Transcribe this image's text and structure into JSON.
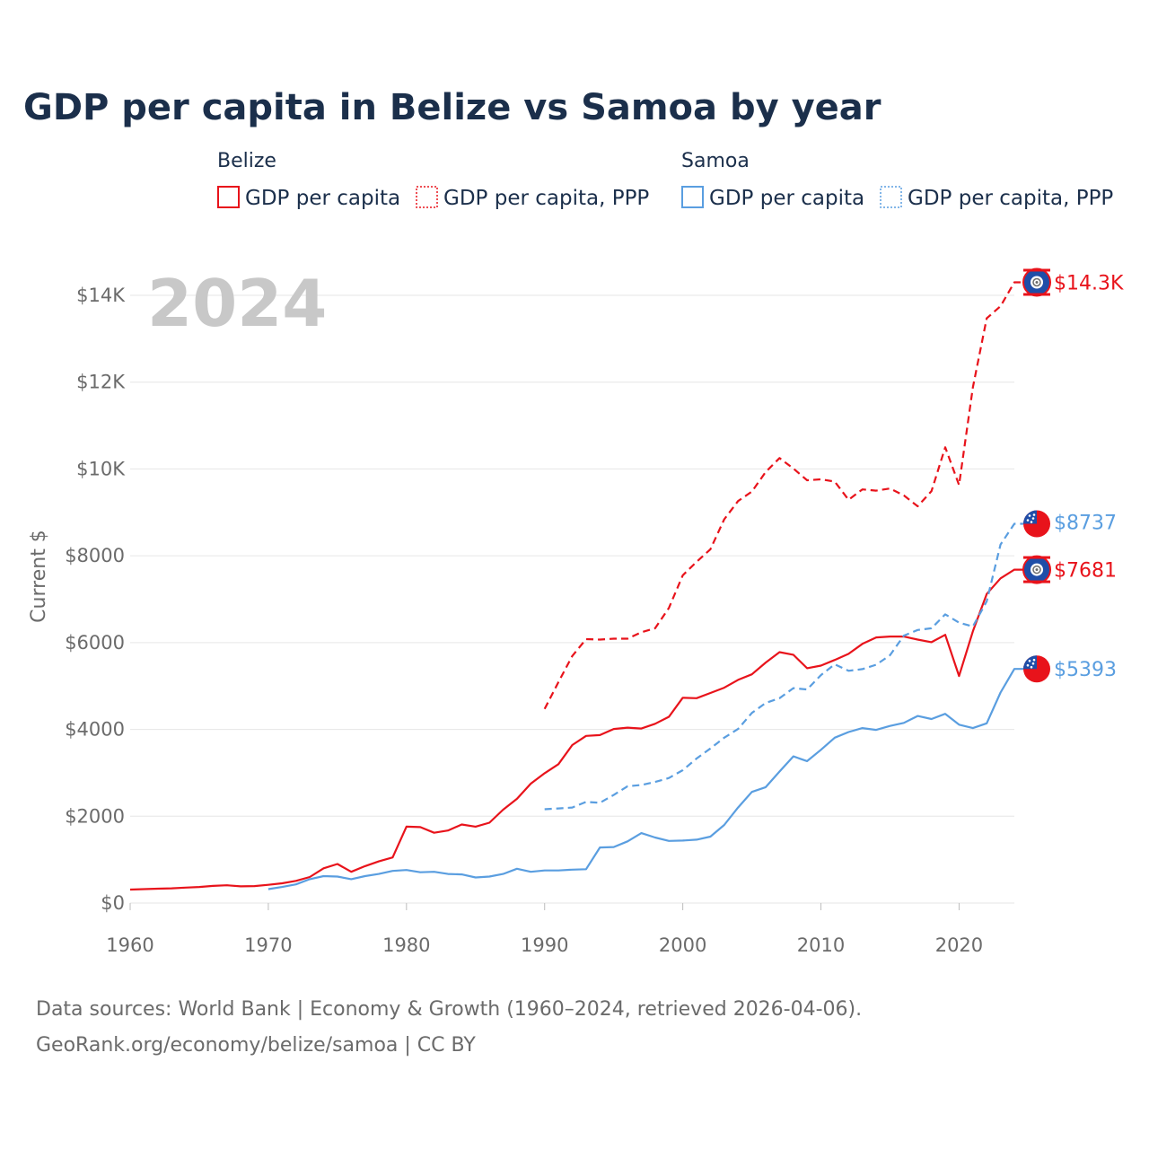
{
  "title": "GDP per capita in Belize vs Samoa by year",
  "year_label": "2024",
  "legend": {
    "groups": [
      {
        "name": "Belize",
        "items": [
          "GDP per capita",
          "GDP per capita, PPP"
        ],
        "color": "#e8131b"
      },
      {
        "name": "Samoa",
        "items": [
          "GDP per capita",
          "GDP per capita, PPP"
        ],
        "color": "#5a9ee0"
      }
    ]
  },
  "footer": {
    "line1": "Data sources: World Bank | Economy & Growth (1960–2024, retrieved 2026-04-06).",
    "line2": "GeoRank.org/economy/belize/samoa | CC BY"
  },
  "colors": {
    "belize": "#e8131b",
    "samoa": "#5a9ee0",
    "flag_blue": "#1f4ea8",
    "flag_red": "#e8131b"
  },
  "chart_data": {
    "type": "line",
    "ylabel": "Current $",
    "xlim": [
      1960,
      2025
    ],
    "ylim": [
      0,
      15000
    ],
    "xticks": [
      1960,
      1970,
      1980,
      1990,
      2000,
      2010,
      2020
    ],
    "xtick_labels": [
      "1960",
      "1970",
      "1980",
      "1990",
      "2000",
      "2010",
      "2020"
    ],
    "yticks": [
      0,
      2000,
      4000,
      6000,
      8000,
      10000,
      12000,
      14000
    ],
    "ytick_labels": [
      "$0",
      "$2000",
      "$4000",
      "$6000",
      "$8000",
      "$10K",
      "$12K",
      "$14K"
    ],
    "series": [
      {
        "name": "Belize GDP per capita",
        "key": "belize_gdp",
        "country": "Belize",
        "color": "#e8131b",
        "dashed": false,
        "end_label": "$7681",
        "x": [
          1960,
          1961,
          1962,
          1963,
          1964,
          1965,
          1966,
          1967,
          1968,
          1969,
          1970,
          1971,
          1972,
          1973,
          1974,
          1975,
          1976,
          1977,
          1978,
          1979,
          1980,
          1981,
          1982,
          1983,
          1984,
          1985,
          1986,
          1987,
          1988,
          1989,
          1990,
          1991,
          1992,
          1993,
          1994,
          1995,
          1996,
          1997,
          1998,
          1999,
          2000,
          2001,
          2002,
          2003,
          2004,
          2005,
          2006,
          2007,
          2008,
          2009,
          2010,
          2011,
          2012,
          2013,
          2014,
          2015,
          2016,
          2017,
          2018,
          2019,
          2020,
          2021,
          2022,
          2023,
          2024
        ],
        "values": [
          310,
          320,
          330,
          340,
          355,
          370,
          395,
          410,
          385,
          390,
          420,
          455,
          510,
          600,
          800,
          900,
          720,
          850,
          960,
          1050,
          1760,
          1750,
          1620,
          1670,
          1810,
          1760,
          1850,
          2150,
          2400,
          2750,
          2990,
          3200,
          3640,
          3850,
          3870,
          4010,
          4040,
          4020,
          4130,
          4290,
          4730,
          4720,
          4840,
          4960,
          5140,
          5270,
          5540,
          5780,
          5720,
          5410,
          5470,
          5600,
          5740,
          5970,
          6120,
          6140,
          6140,
          6070,
          6010,
          6180,
          5230,
          6260,
          7120,
          7480,
          7681
        ]
      },
      {
        "name": "Belize GDP per capita, PPP",
        "key": "belize_ppp",
        "country": "Belize",
        "color": "#e8131b",
        "dashed": true,
        "end_label": "$14.3K",
        "x": [
          1990,
          1991,
          1992,
          1993,
          1994,
          1995,
          1996,
          1997,
          1998,
          1999,
          2000,
          2001,
          2002,
          2003,
          2004,
          2005,
          2006,
          2007,
          2008,
          2009,
          2010,
          2011,
          2012,
          2013,
          2014,
          2015,
          2016,
          2017,
          2018,
          2019,
          2020,
          2021,
          2022,
          2023,
          2024
        ],
        "values": [
          4470,
          5090,
          5690,
          6080,
          6070,
          6090,
          6090,
          6240,
          6330,
          6800,
          7550,
          7860,
          8150,
          8840,
          9260,
          9480,
          9930,
          10250,
          10010,
          9740,
          9760,
          9710,
          9290,
          9530,
          9500,
          9550,
          9390,
          9140,
          9490,
          10500,
          9630,
          11880,
          13470,
          13750,
          14300
        ]
      },
      {
        "name": "Samoa GDP per capita",
        "key": "samoa_gdp",
        "country": "Samoa",
        "color": "#5a9ee0",
        "dashed": false,
        "end_label": "$5393",
        "x": [
          1970,
          1971,
          1972,
          1973,
          1974,
          1975,
          1976,
          1977,
          1978,
          1979,
          1980,
          1981,
          1982,
          1983,
          1984,
          1985,
          1986,
          1987,
          1988,
          1989,
          1990,
          1991,
          1992,
          1993,
          1994,
          1995,
          1996,
          1997,
          1998,
          1999,
          2000,
          2001,
          2002,
          2003,
          2004,
          2005,
          2006,
          2007,
          2008,
          2009,
          2010,
          2011,
          2012,
          2013,
          2014,
          2015,
          2016,
          2017,
          2018,
          2019,
          2020,
          2021,
          2022,
          2023,
          2024
        ],
        "values": [
          320,
          370,
          430,
          550,
          620,
          610,
          550,
          620,
          670,
          740,
          760,
          710,
          720,
          670,
          660,
          590,
          610,
          670,
          790,
          720,
          750,
          750,
          770,
          780,
          1280,
          1290,
          1420,
          1610,
          1510,
          1430,
          1440,
          1460,
          1530,
          1800,
          2200,
          2560,
          2670,
          3030,
          3380,
          3270,
          3530,
          3810,
          3940,
          4030,
          3990,
          4080,
          4150,
          4310,
          4240,
          4360,
          4110,
          4030,
          4140,
          4850,
          5393
        ]
      },
      {
        "name": "Samoa GDP per capita, PPP",
        "key": "samoa_ppp",
        "country": "Samoa",
        "color": "#5a9ee0",
        "dashed": true,
        "end_label": "$8737",
        "x": [
          1990,
          1991,
          1992,
          1993,
          1994,
          1995,
          1996,
          1997,
          1998,
          1999,
          2000,
          2001,
          2002,
          2003,
          2004,
          2005,
          2006,
          2007,
          2008,
          2009,
          2010,
          2011,
          2012,
          2013,
          2014,
          2015,
          2016,
          2017,
          2018,
          2019,
          2020,
          2021,
          2022,
          2023,
          2024
        ],
        "values": [
          2160,
          2180,
          2200,
          2330,
          2310,
          2490,
          2690,
          2720,
          2790,
          2880,
          3060,
          3330,
          3560,
          3810,
          4010,
          4380,
          4610,
          4720,
          4950,
          4920,
          5250,
          5500,
          5350,
          5390,
          5490,
          5710,
          6160,
          6290,
          6330,
          6650,
          6460,
          6370,
          6950,
          8260,
          8737
        ]
      }
    ]
  }
}
